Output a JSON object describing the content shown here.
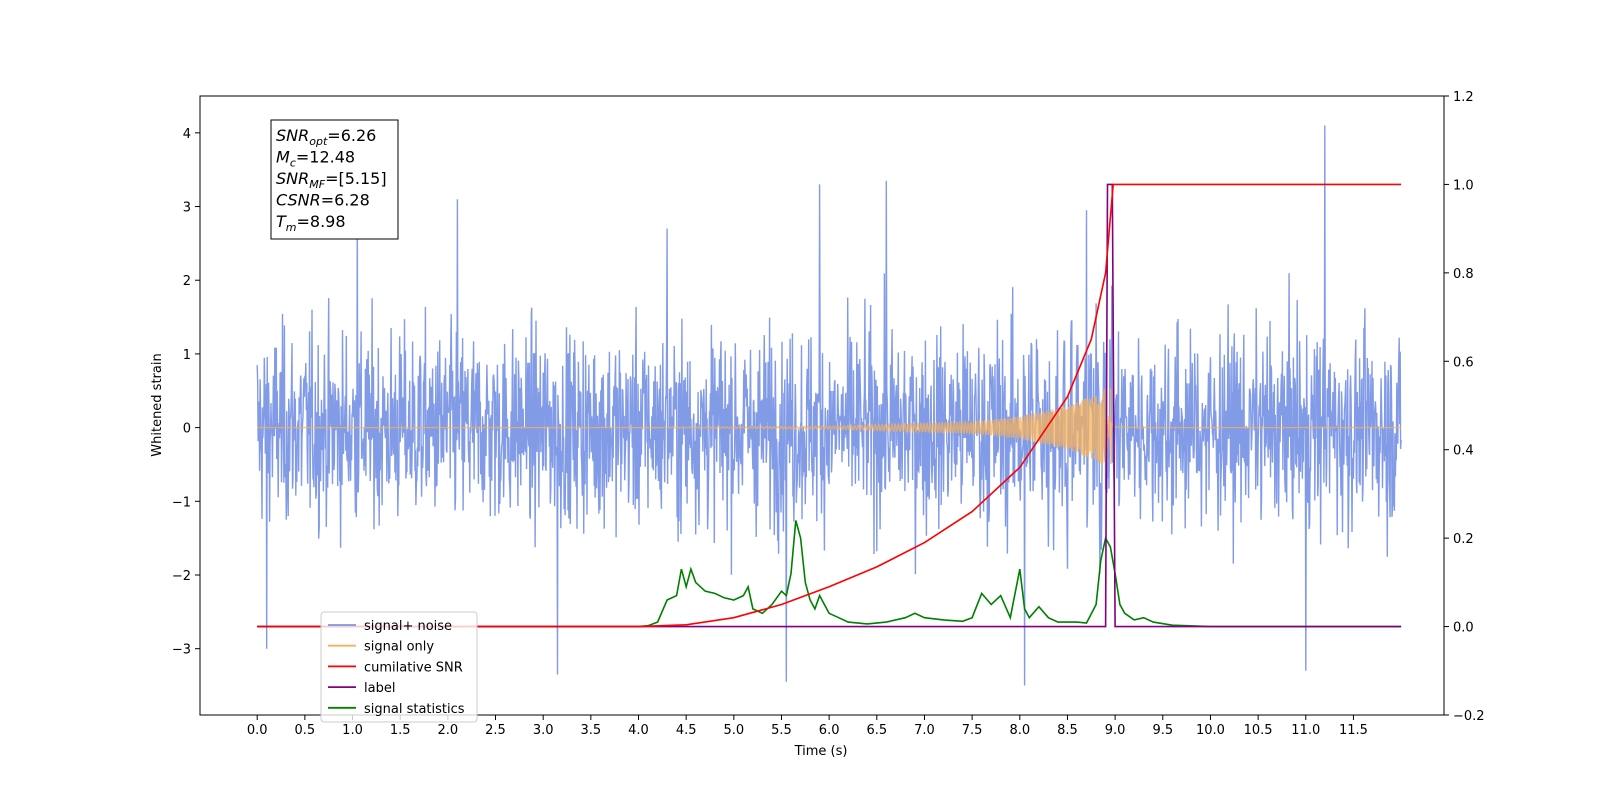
{
  "chart_data": {
    "type": "line",
    "xlabel": "Time (s)",
    "ylabel": "Whitened strain",
    "xlim": [
      -0.6,
      12.45
    ],
    "ylim": [
      -3.9,
      4.5
    ],
    "y2lim": [
      -0.2,
      1.2
    ],
    "x_ticks": [
      "0.0",
      "0.5",
      "1.0",
      "1.5",
      "2.0",
      "2.5",
      "3.0",
      "3.5",
      "4.0",
      "4.5",
      "5.0",
      "5.5",
      "6.0",
      "6.5",
      "7.0",
      "7.5",
      "8.0",
      "8.5",
      "9.0",
      "9.5",
      "10.0",
      "10.5",
      "11.0",
      "11.5"
    ],
    "y_ticks": [
      "4",
      "3",
      "2",
      "1",
      "0",
      "−1",
      "−2",
      "−3"
    ],
    "y2_ticks": [
      "1.2",
      "1.0",
      "0.8",
      "0.6",
      "0.4",
      "0.2",
      "0.0",
      "−0.2"
    ],
    "grid": false,
    "legend_position": "lower-left",
    "annotation": [
      {
        "name": "SNR",
        "sub": "opt",
        "value": "=6.26"
      },
      {
        "name": "M",
        "sub": "c",
        "value": "=12.48"
      },
      {
        "name": "SNR",
        "sub": "MF",
        "value": "=[5.15]"
      },
      {
        "name": "CSNR",
        "sub": "",
        "value": "=6.28"
      },
      {
        "name": "T",
        "sub": "m",
        "value": "=8.98"
      }
    ],
    "series": [
      {
        "name": "signal+ noise",
        "color": "#7b96e6",
        "axis": "left",
        "kind": "noise",
        "x_range": [
          0,
          12.0
        ],
        "band": [
          -2.1,
          2.1
        ],
        "peaks": [
          [
            0.1,
            -3.0
          ],
          [
            1.05,
            2.9
          ],
          [
            2.1,
            3.1
          ],
          [
            3.15,
            -3.35
          ],
          [
            4.3,
            2.7
          ],
          [
            5.55,
            -3.45
          ],
          [
            5.9,
            3.3
          ],
          [
            6.6,
            3.35
          ],
          [
            8.05,
            -3.5
          ],
          [
            8.7,
            2.95
          ],
          [
            11.0,
            -3.3
          ],
          [
            11.2,
            4.1
          ]
        ]
      },
      {
        "name": "signal only",
        "color": "#f5b25c",
        "axis": "left",
        "kind": "chirp",
        "t_merger": 8.98,
        "amplitude": [
          [
            4.0,
            0.0
          ],
          [
            6.0,
            0.02
          ],
          [
            7.5,
            0.08
          ],
          [
            8.0,
            0.15
          ],
          [
            8.5,
            0.3
          ],
          [
            8.8,
            0.45
          ],
          [
            8.95,
            0.6
          ],
          [
            9.0,
            0.05
          ],
          [
            9.3,
            0.0
          ]
        ]
      },
      {
        "name": "cumilative SNR",
        "color": "#ff0000",
        "axis": "right",
        "points": [
          [
            0,
            0
          ],
          [
            4.0,
            0
          ],
          [
            4.5,
            0.004
          ],
          [
            5.0,
            0.02
          ],
          [
            5.5,
            0.05
          ],
          [
            6.0,
            0.09
          ],
          [
            6.5,
            0.135
          ],
          [
            7.0,
            0.19
          ],
          [
            7.5,
            0.26
          ],
          [
            8.0,
            0.36
          ],
          [
            8.5,
            0.52
          ],
          [
            8.75,
            0.65
          ],
          [
            8.9,
            0.8
          ],
          [
            8.98,
            1.0
          ],
          [
            12.0,
            1.0
          ]
        ]
      },
      {
        "name": "label",
        "color": "#800080",
        "axis": "right",
        "points": [
          [
            0,
            0
          ],
          [
            8.9,
            0
          ],
          [
            8.92,
            1.0
          ],
          [
            8.97,
            1.0
          ],
          [
            9.0,
            0
          ],
          [
            12.0,
            0
          ]
        ]
      },
      {
        "name": "signal statistics",
        "color": "#008000",
        "axis": "right",
        "points": [
          [
            0,
            0
          ],
          [
            4.0,
            0
          ],
          [
            4.1,
            0.002
          ],
          [
            4.2,
            0.01
          ],
          [
            4.3,
            0.06
          ],
          [
            4.4,
            0.07
          ],
          [
            4.45,
            0.13
          ],
          [
            4.5,
            0.09
          ],
          [
            4.55,
            0.13
          ],
          [
            4.6,
            0.1
          ],
          [
            4.7,
            0.08
          ],
          [
            4.8,
            0.075
          ],
          [
            4.9,
            0.065
          ],
          [
            5.0,
            0.06
          ],
          [
            5.1,
            0.07
          ],
          [
            5.15,
            0.09
          ],
          [
            5.2,
            0.04
          ],
          [
            5.3,
            0.03
          ],
          [
            5.4,
            0.05
          ],
          [
            5.5,
            0.08
          ],
          [
            5.55,
            0.07
          ],
          [
            5.6,
            0.12
          ],
          [
            5.65,
            0.24
          ],
          [
            5.7,
            0.2
          ],
          [
            5.75,
            0.1
          ],
          [
            5.8,
            0.06
          ],
          [
            5.85,
            0.04
          ],
          [
            5.9,
            0.07
          ],
          [
            6.0,
            0.03
          ],
          [
            6.1,
            0.02
          ],
          [
            6.2,
            0.01
          ],
          [
            6.4,
            0.006
          ],
          [
            6.6,
            0.01
          ],
          [
            6.8,
            0.02
          ],
          [
            6.9,
            0.03
          ],
          [
            7.0,
            0.02
          ],
          [
            7.2,
            0.015
          ],
          [
            7.4,
            0.012
          ],
          [
            7.5,
            0.02
          ],
          [
            7.6,
            0.075
          ],
          [
            7.7,
            0.05
          ],
          [
            7.8,
            0.07
          ],
          [
            7.9,
            0.02
          ],
          [
            8.0,
            0.13
          ],
          [
            8.05,
            0.04
          ],
          [
            8.1,
            0.02
          ],
          [
            8.2,
            0.045
          ],
          [
            8.3,
            0.02
          ],
          [
            8.4,
            0.01
          ],
          [
            8.6,
            0.01
          ],
          [
            8.7,
            0.008
          ],
          [
            8.8,
            0.05
          ],
          [
            8.85,
            0.15
          ],
          [
            8.9,
            0.2
          ],
          [
            8.95,
            0.18
          ],
          [
            9.0,
            0.12
          ],
          [
            9.05,
            0.05
          ],
          [
            9.1,
            0.03
          ],
          [
            9.2,
            0.015
          ],
          [
            9.3,
            0.02
          ],
          [
            9.4,
            0.01
          ],
          [
            9.6,
            0.003
          ],
          [
            10.0,
            0
          ],
          [
            12.0,
            0
          ]
        ]
      }
    ]
  }
}
